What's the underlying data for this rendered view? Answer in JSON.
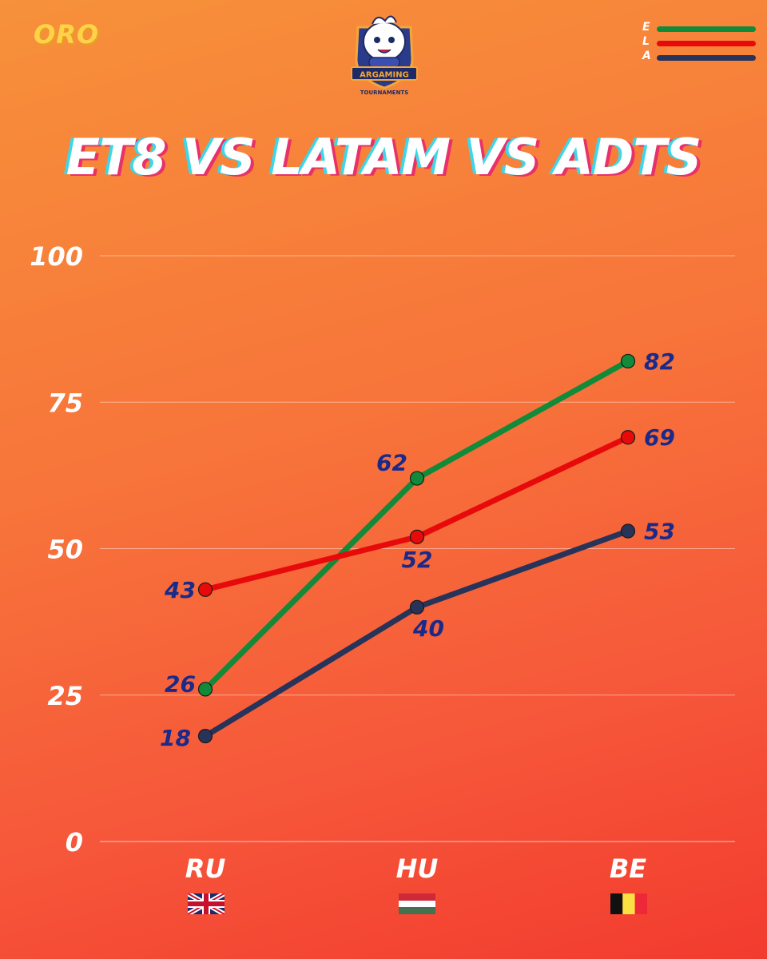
{
  "header": {
    "tier_label": "ORO",
    "logo_text_top": "ARGAMING",
    "logo_text_bottom": "TOURNAMENTS"
  },
  "legend": [
    {
      "letter": "E",
      "color": "#118a3a"
    },
    {
      "letter": "L",
      "color": "#e80a0a"
    },
    {
      "letter": "A",
      "color": "#283359"
    }
  ],
  "chart_data": {
    "type": "line",
    "title": "ET8 VS LATAM VS ADTS",
    "categories": [
      "RU",
      "HU",
      "BE"
    ],
    "flags": [
      "uk-flag",
      "hungary-flag",
      "belgium-flag"
    ],
    "ylim": [
      0,
      100
    ],
    "yticks": [
      0,
      25,
      50,
      75,
      100
    ],
    "grid": true,
    "legend_position": "top-right",
    "series": [
      {
        "key": "E",
        "color": "#118a3a",
        "values": [
          26,
          62,
          82
        ]
      },
      {
        "key": "L",
        "color": "#e80a0a",
        "values": [
          43,
          52,
          69
        ]
      },
      {
        "key": "A",
        "color": "#283359",
        "values": [
          18,
          40,
          53
        ]
      }
    ]
  }
}
